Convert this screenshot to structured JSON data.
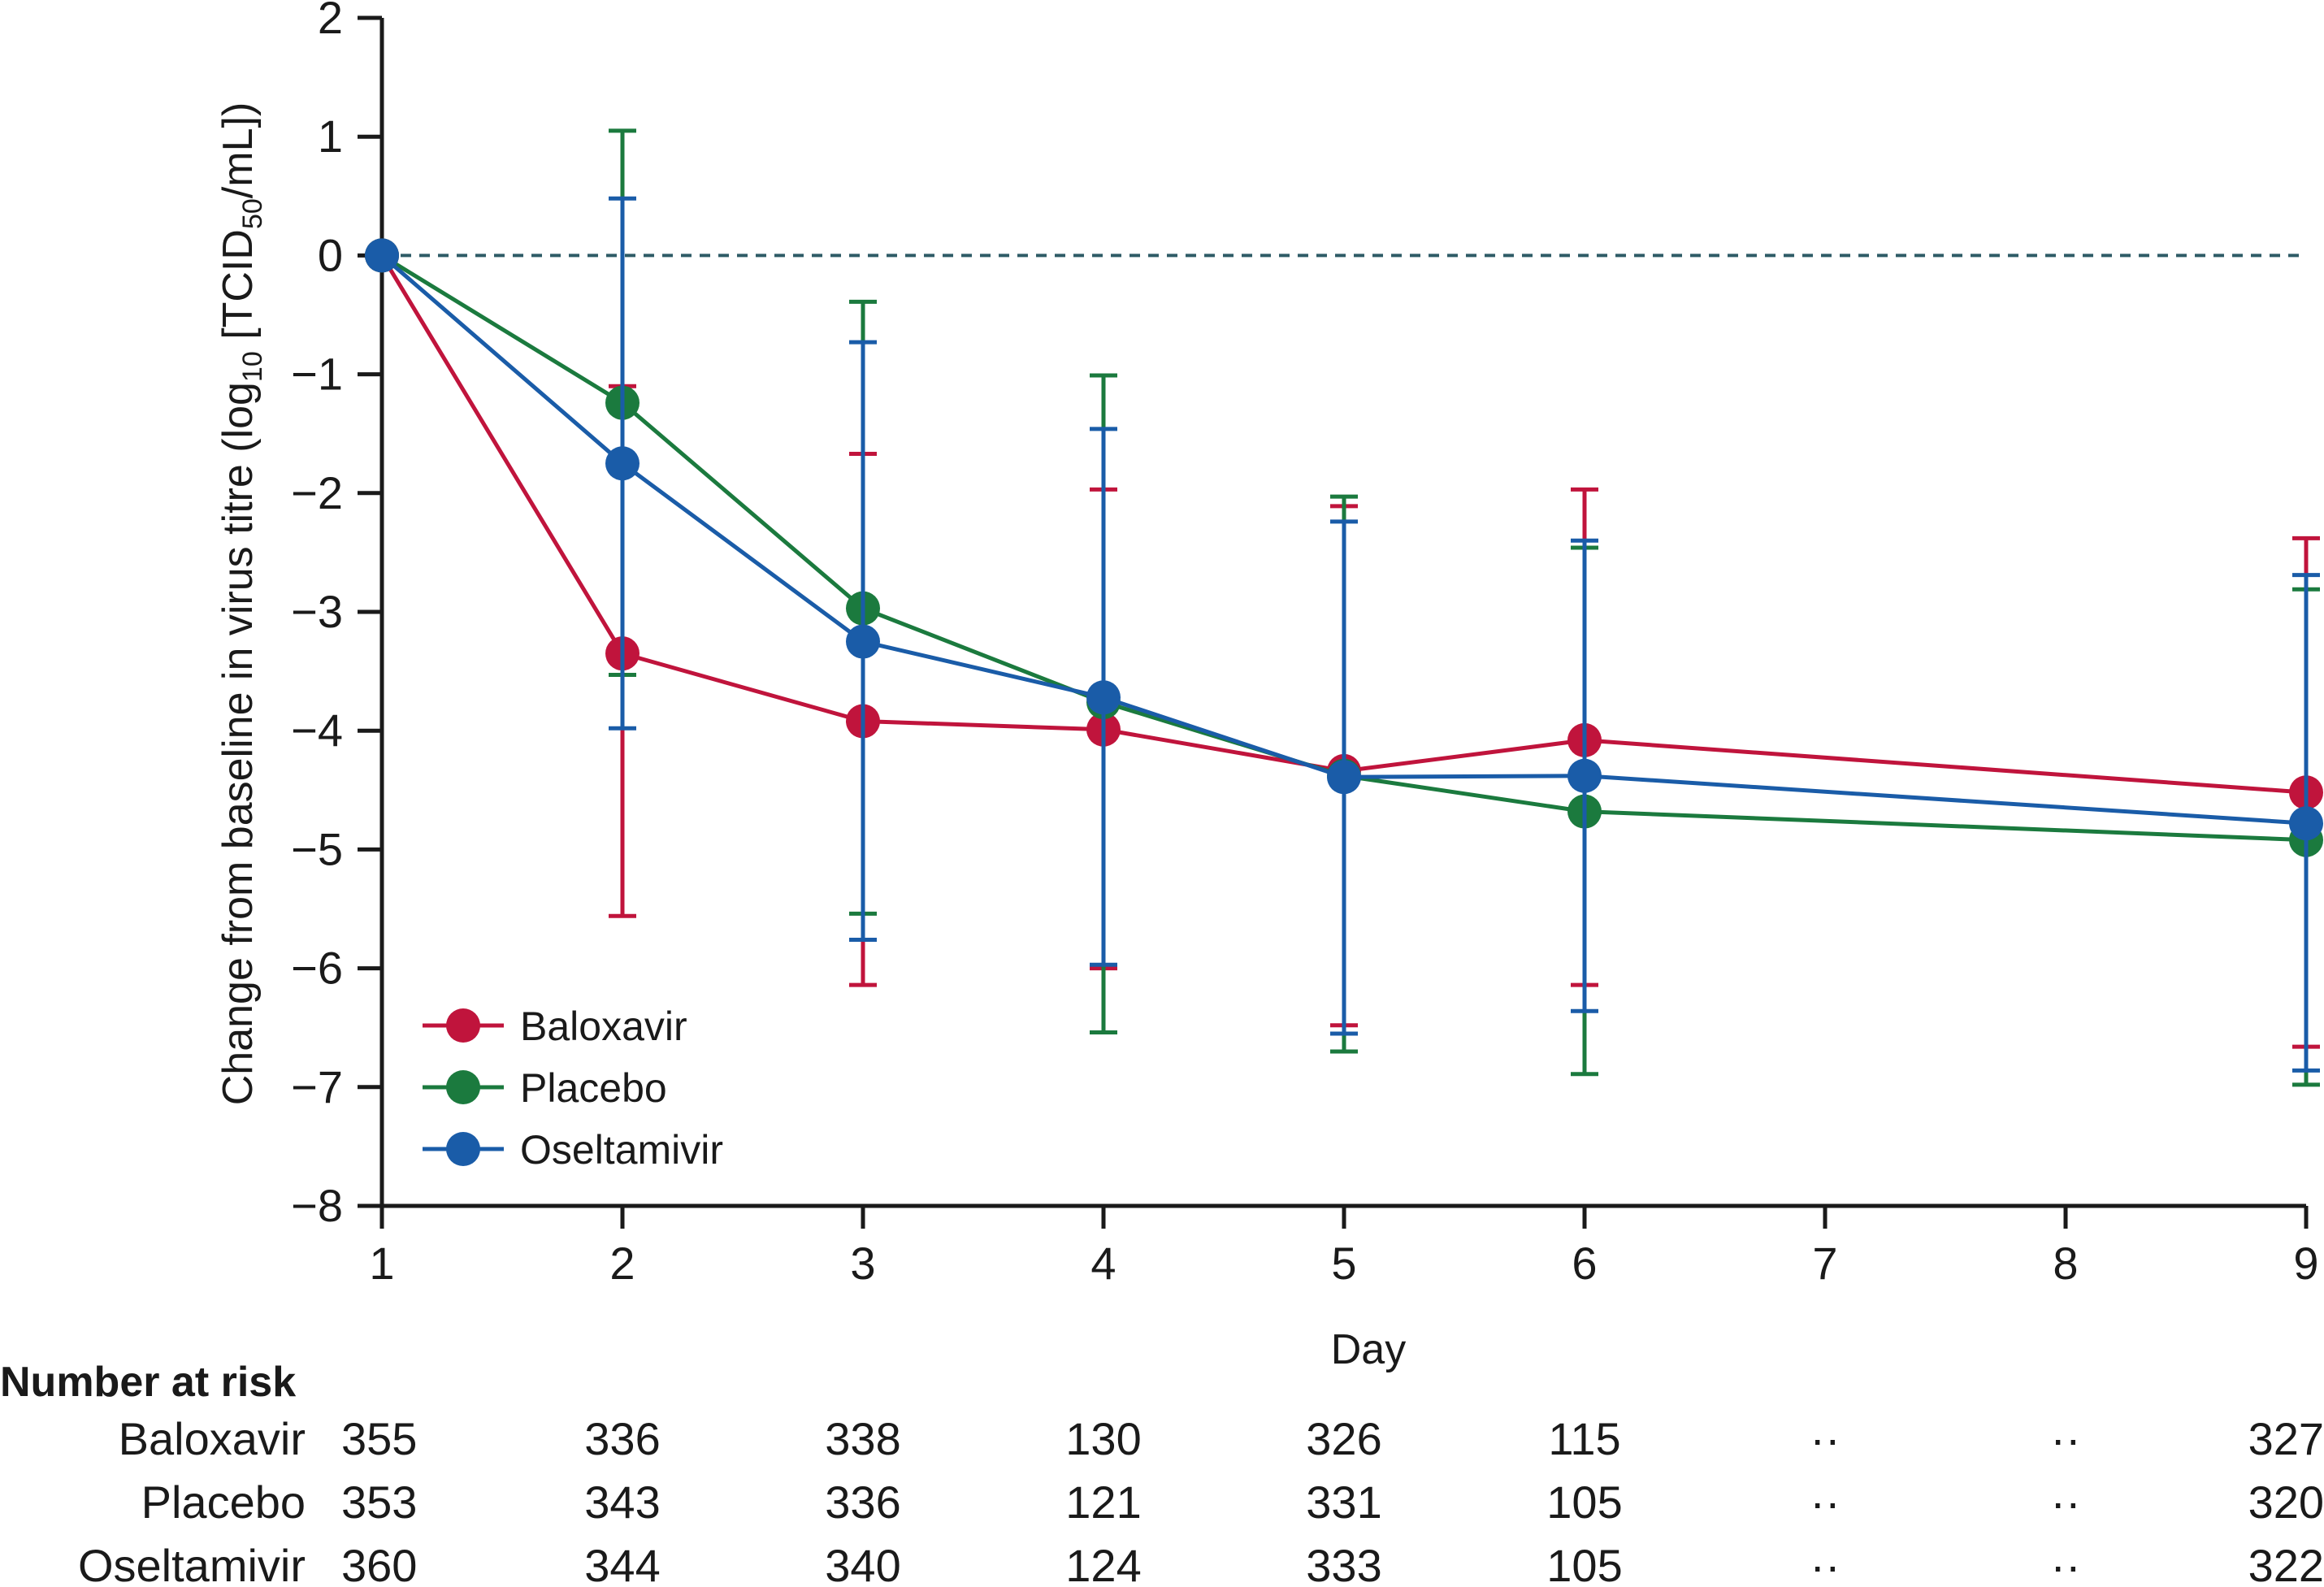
{
  "chart_data": {
    "type": "line",
    "title": "",
    "xlabel": "Day",
    "ylabel_parts": {
      "pre": "Change from baseline in virus titre (log",
      "sub1": "10",
      "mid": " [TCID",
      "sub2": "50",
      "post": "/mL])"
    },
    "xlim": [
      1,
      9
    ],
    "ylim": [
      -8,
      2
    ],
    "x_ticks": [
      1,
      2,
      3,
      4,
      5,
      6,
      7,
      8,
      9
    ],
    "y_ticks": [
      2,
      1,
      0,
      -1,
      -2,
      -3,
      -4,
      -5,
      -6,
      -7,
      -8
    ],
    "reference_line_y": 0,
    "legend_position": "bottom-left",
    "series": [
      {
        "name": "Baloxavir",
        "color": "#c0143c",
        "x": [
          1,
          2,
          3,
          4,
          5,
          6,
          9
        ],
        "y": [
          0,
          -3.35,
          -3.92,
          -3.99,
          -4.34,
          -4.08,
          -4.52
        ],
        "err_low": [
          null,
          -5.56,
          -6.14,
          -6.0,
          -6.48,
          -6.14,
          -6.66
        ],
        "err_high": [
          null,
          -1.1,
          -1.67,
          -1.97,
          -2.11,
          -1.97,
          -2.38
        ]
      },
      {
        "name": "Placebo",
        "color": "#1b7a3e",
        "x": [
          1,
          2,
          3,
          4,
          5,
          6,
          9
        ],
        "y": [
          0,
          -1.24,
          -2.97,
          -3.76,
          -4.38,
          -4.68,
          -4.92
        ],
        "err_low": [
          null,
          -3.53,
          -5.54,
          -6.54,
          -6.7,
          -6.89,
          -6.98
        ],
        "err_high": [
          null,
          1.05,
          -0.39,
          -1.01,
          -2.03,
          -2.46,
          -2.81
        ]
      },
      {
        "name": "Oseltamivir",
        "color": "#1a5ca8",
        "x": [
          1,
          2,
          3,
          4,
          5,
          6,
          9
        ],
        "y": [
          0,
          -1.75,
          -3.25,
          -3.72,
          -4.39,
          -4.38,
          -4.78
        ],
        "err_low": [
          null,
          -3.98,
          -5.76,
          -5.97,
          -6.55,
          -6.36,
          -6.86
        ],
        "err_high": [
          null,
          0.48,
          -0.73,
          -1.46,
          -2.24,
          -2.4,
          -2.69
        ]
      }
    ],
    "number_at_risk": {
      "title": "Number at risk",
      "columns": [
        "1",
        "2",
        "3",
        "4",
        "5",
        "6",
        "7",
        "8",
        "9"
      ],
      "rows": [
        {
          "label": "Baloxavir",
          "values": [
            "355",
            "336",
            "338",
            "130",
            "326",
            "115",
            "··",
            "··",
            "327"
          ]
        },
        {
          "label": "Placebo",
          "values": [
            "353",
            "343",
            "336",
            "121",
            "331",
            "105",
            "··",
            "··",
            "320"
          ]
        },
        {
          "label": "Oseltamivir",
          "values": [
            "360",
            "344",
            "340",
            "124",
            "333",
            "105",
            "··",
            "··",
            "322"
          ]
        }
      ]
    }
  }
}
